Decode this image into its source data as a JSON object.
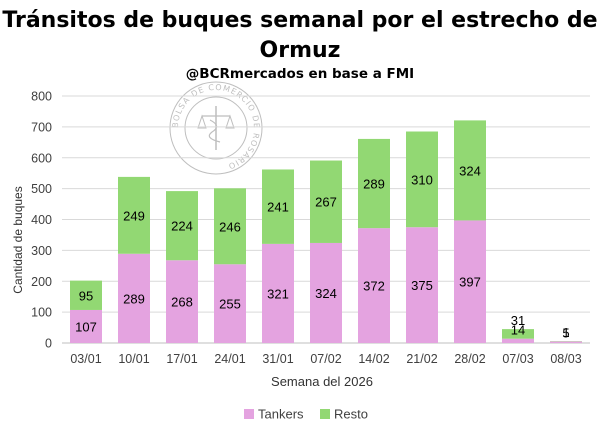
{
  "chart_data": {
    "type": "bar",
    "stacked": true,
    "title": "Tránsitos de buques semanal por el estrecho de Ormuz",
    "subtitle": "@BCRmercados en base a FMI",
    "watermark": "BOLSA DE COMERCIO DE ROSARIO",
    "xlabel": "Semana del 2026",
    "ylabel": "Cantidad de buques",
    "ylim": [
      0,
      800
    ],
    "yticks": [
      0,
      100,
      200,
      300,
      400,
      500,
      600,
      700,
      800
    ],
    "grid": true,
    "legend_position": "bottom",
    "categories": [
      "03/01",
      "10/01",
      "17/01",
      "24/01",
      "31/01",
      "07/02",
      "14/02",
      "21/02",
      "28/02",
      "07/03",
      "08/03"
    ],
    "series": [
      {
        "name": "Tankers",
        "color": "#e4a3e0",
        "values": [
          107,
          289,
          268,
          255,
          321,
          324,
          372,
          375,
          397,
          14,
          5
        ]
      },
      {
        "name": "Resto",
        "color": "#92d873",
        "values": [
          95,
          249,
          224,
          246,
          241,
          267,
          289,
          310,
          324,
          31,
          1
        ]
      }
    ]
  }
}
